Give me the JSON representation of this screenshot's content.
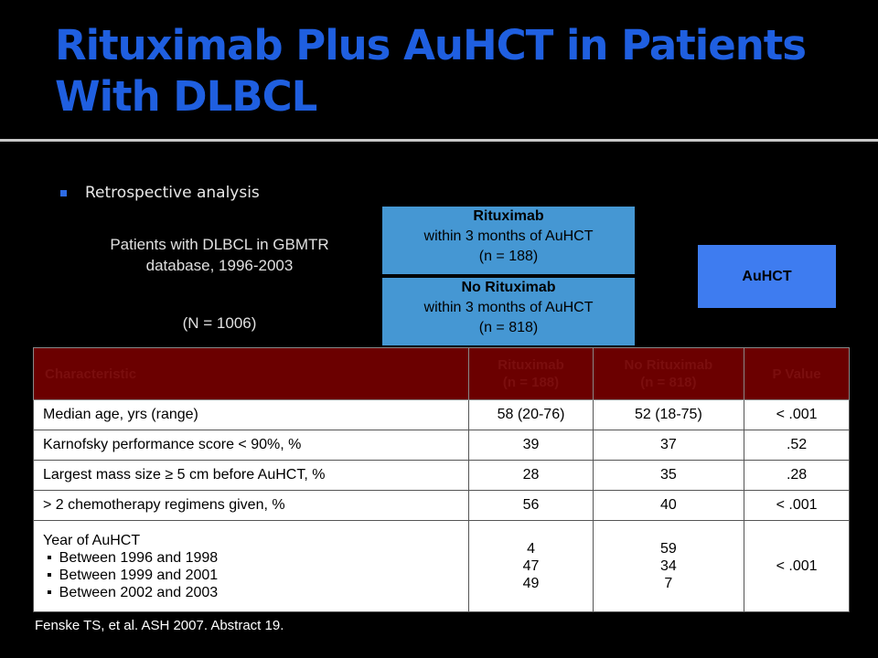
{
  "title": "Rituximab Plus AuHCT in Patients With DLBCL",
  "bullet": "Retrospective analysis",
  "diagram": {
    "patients_text": "Patients with DLBCL in GBMTR database, 1996-2003",
    "patients_n": "(N = 1006)",
    "rituximab": {
      "name": "Rituximab",
      "detail": "within 3 months of AuHCT",
      "n": "(n = 188)"
    },
    "no_rituximab": {
      "name": "No Rituximab",
      "detail": "within 3 months of AuHCT",
      "n": "(n = 818)"
    },
    "auhct": "AuHCT"
  },
  "table": {
    "headers": {
      "characteristic": "Characteristic",
      "rit": "Rituximab",
      "rit_n": "(n = 188)",
      "norit": "No Rituximab",
      "norit_n": "(n = 818)",
      "p": "P Value"
    },
    "rows": [
      {
        "label": "Median age, yrs (range)",
        "rit": "58 (20-76)",
        "norit": "52 (18-75)",
        "p": "< .001"
      },
      {
        "label": "Karnofsky performance score < 90%, %",
        "rit": "39",
        "norit": "37",
        "p": ".52"
      },
      {
        "label": "Largest mass size ≥ 5 cm before AuHCT, %",
        "rit": "28",
        "norit": "35",
        "p": ".28"
      },
      {
        "label": "> 2 chemotherapy regimens given, %",
        "rit": "56",
        "norit": "40",
        "p": "< .001"
      }
    ],
    "year_row": {
      "label": "Year of AuHCT",
      "items": [
        {
          "label": "Between 1996 and 1998",
          "rit": "4",
          "norit": "59"
        },
        {
          "label": "Between 1999 and 2001",
          "rit": "47",
          "norit": "34"
        },
        {
          "label": "Between 2002 and 2003",
          "rit": "49",
          "norit": "7"
        }
      ],
      "p": "< .001"
    }
  },
  "citation": "Fenske TS, et al. ASH 2007. Abstract 19."
}
